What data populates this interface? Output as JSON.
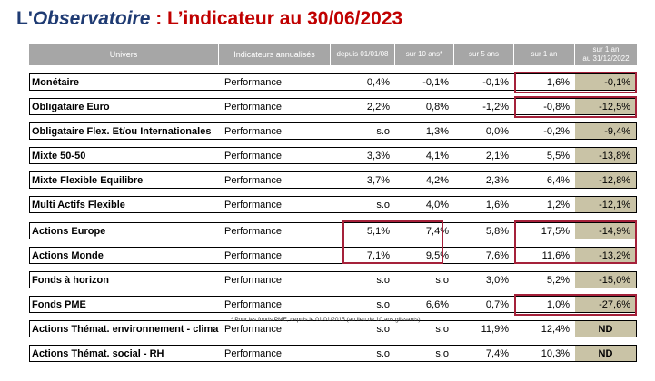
{
  "title": {
    "brand_l": "L'",
    "brand_obs": "Observatoire",
    "rest": " : L’indicateur au 30/06/2023"
  },
  "columns": {
    "univers": "Univers",
    "indicateurs": "Indicateurs annualisés",
    "depuis": "depuis 01/01/08",
    "sur10": "sur 10 ans*",
    "sur5": "sur 5 ans",
    "sur1": "sur 1 an",
    "sur1_2022_line1": "sur 1 an",
    "sur1_2022_line2": "au 31/12/2022"
  },
  "rows": [
    {
      "name": "Monétaire",
      "indicator": "Performance",
      "depuis": "0,4%",
      "sur10": "-0,1%",
      "sur5": "-0,1%",
      "sur1": "1,6%",
      "sur1_2022": "-0,1%"
    },
    {
      "name": "Obligataire Euro",
      "indicator": "Performance",
      "depuis": "2,2%",
      "sur10": "0,8%",
      "sur5": "-1,2%",
      "sur1": "-0,8%",
      "sur1_2022": "-12,5%"
    },
    {
      "name": "Obligataire Flex. Et/ou Internationales",
      "indicator": "Performance",
      "depuis": "s.o",
      "sur10": "1,3%",
      "sur5": "0,0%",
      "sur1": "-0,2%",
      "sur1_2022": "-9,4%"
    },
    {
      "name": "Mixte 50-50",
      "indicator": "Performance",
      "depuis": "3,3%",
      "sur10": "4,1%",
      "sur5": "2,1%",
      "sur1": "5,5%",
      "sur1_2022": "-13,8%"
    },
    {
      "name": "Mixte Flexible Equilibre",
      "indicator": "Performance",
      "depuis": "3,7%",
      "sur10": "4,2%",
      "sur5": "2,3%",
      "sur1": "6,4%",
      "sur1_2022": "-12,8%"
    },
    {
      "name": "Multi Actifs Flexible",
      "indicator": "Performance",
      "depuis": "s.o",
      "sur10": "4,0%",
      "sur5": "1,6%",
      "sur1": "1,2%",
      "sur1_2022": "-12,1%"
    },
    {
      "name": "Actions Europe",
      "indicator": "Performance",
      "depuis": "5,1%",
      "sur10": "7,4%",
      "sur5": "5,8%",
      "sur1": "17,5%",
      "sur1_2022": "-14,9%"
    },
    {
      "name": "Actions Monde",
      "indicator": "Performance",
      "depuis": "7,1%",
      "sur10": "9,5%",
      "sur5": "7,6%",
      "sur1": "11,6%",
      "sur1_2022": "-13,2%"
    },
    {
      "name": "Fonds à horizon",
      "indicator": "Performance",
      "depuis": "s.o",
      "sur10": "s.o",
      "sur5": "3,0%",
      "sur1": "5,2%",
      "sur1_2022": "-15,0%"
    },
    {
      "name": "Fonds PME",
      "indicator": "Performance",
      "depuis": "s.o",
      "sur10": "6,6%",
      "sur5": "0,7%",
      "sur1": "1,0%",
      "sur1_2022": "-27,6%"
    },
    {
      "name": "Actions Thémat. environnement - climat",
      "indicator": "Performance",
      "depuis": "s.o",
      "sur10": "s.o",
      "sur5": "11,9%",
      "sur1": "12,4%",
      "sur1_2022": "ND"
    },
    {
      "name": "Actions Thémat. social - RH",
      "indicator": "Performance",
      "depuis": "s.o",
      "sur10": "s.o",
      "sur5": "7,4%",
      "sur1": "10,3%",
      "sur1_2022": "ND"
    }
  ],
  "footnote": "* Pour les fonds PME, depuis le 01/01/2015 (au lieu de 10 ans glissants)",
  "colors": {
    "header_bg": "#a6a6a6",
    "shaded_col": "#c9c3a6",
    "highlight": "#a5213a",
    "title_red": "#c00000",
    "title_blue": "#1f3b73"
  }
}
